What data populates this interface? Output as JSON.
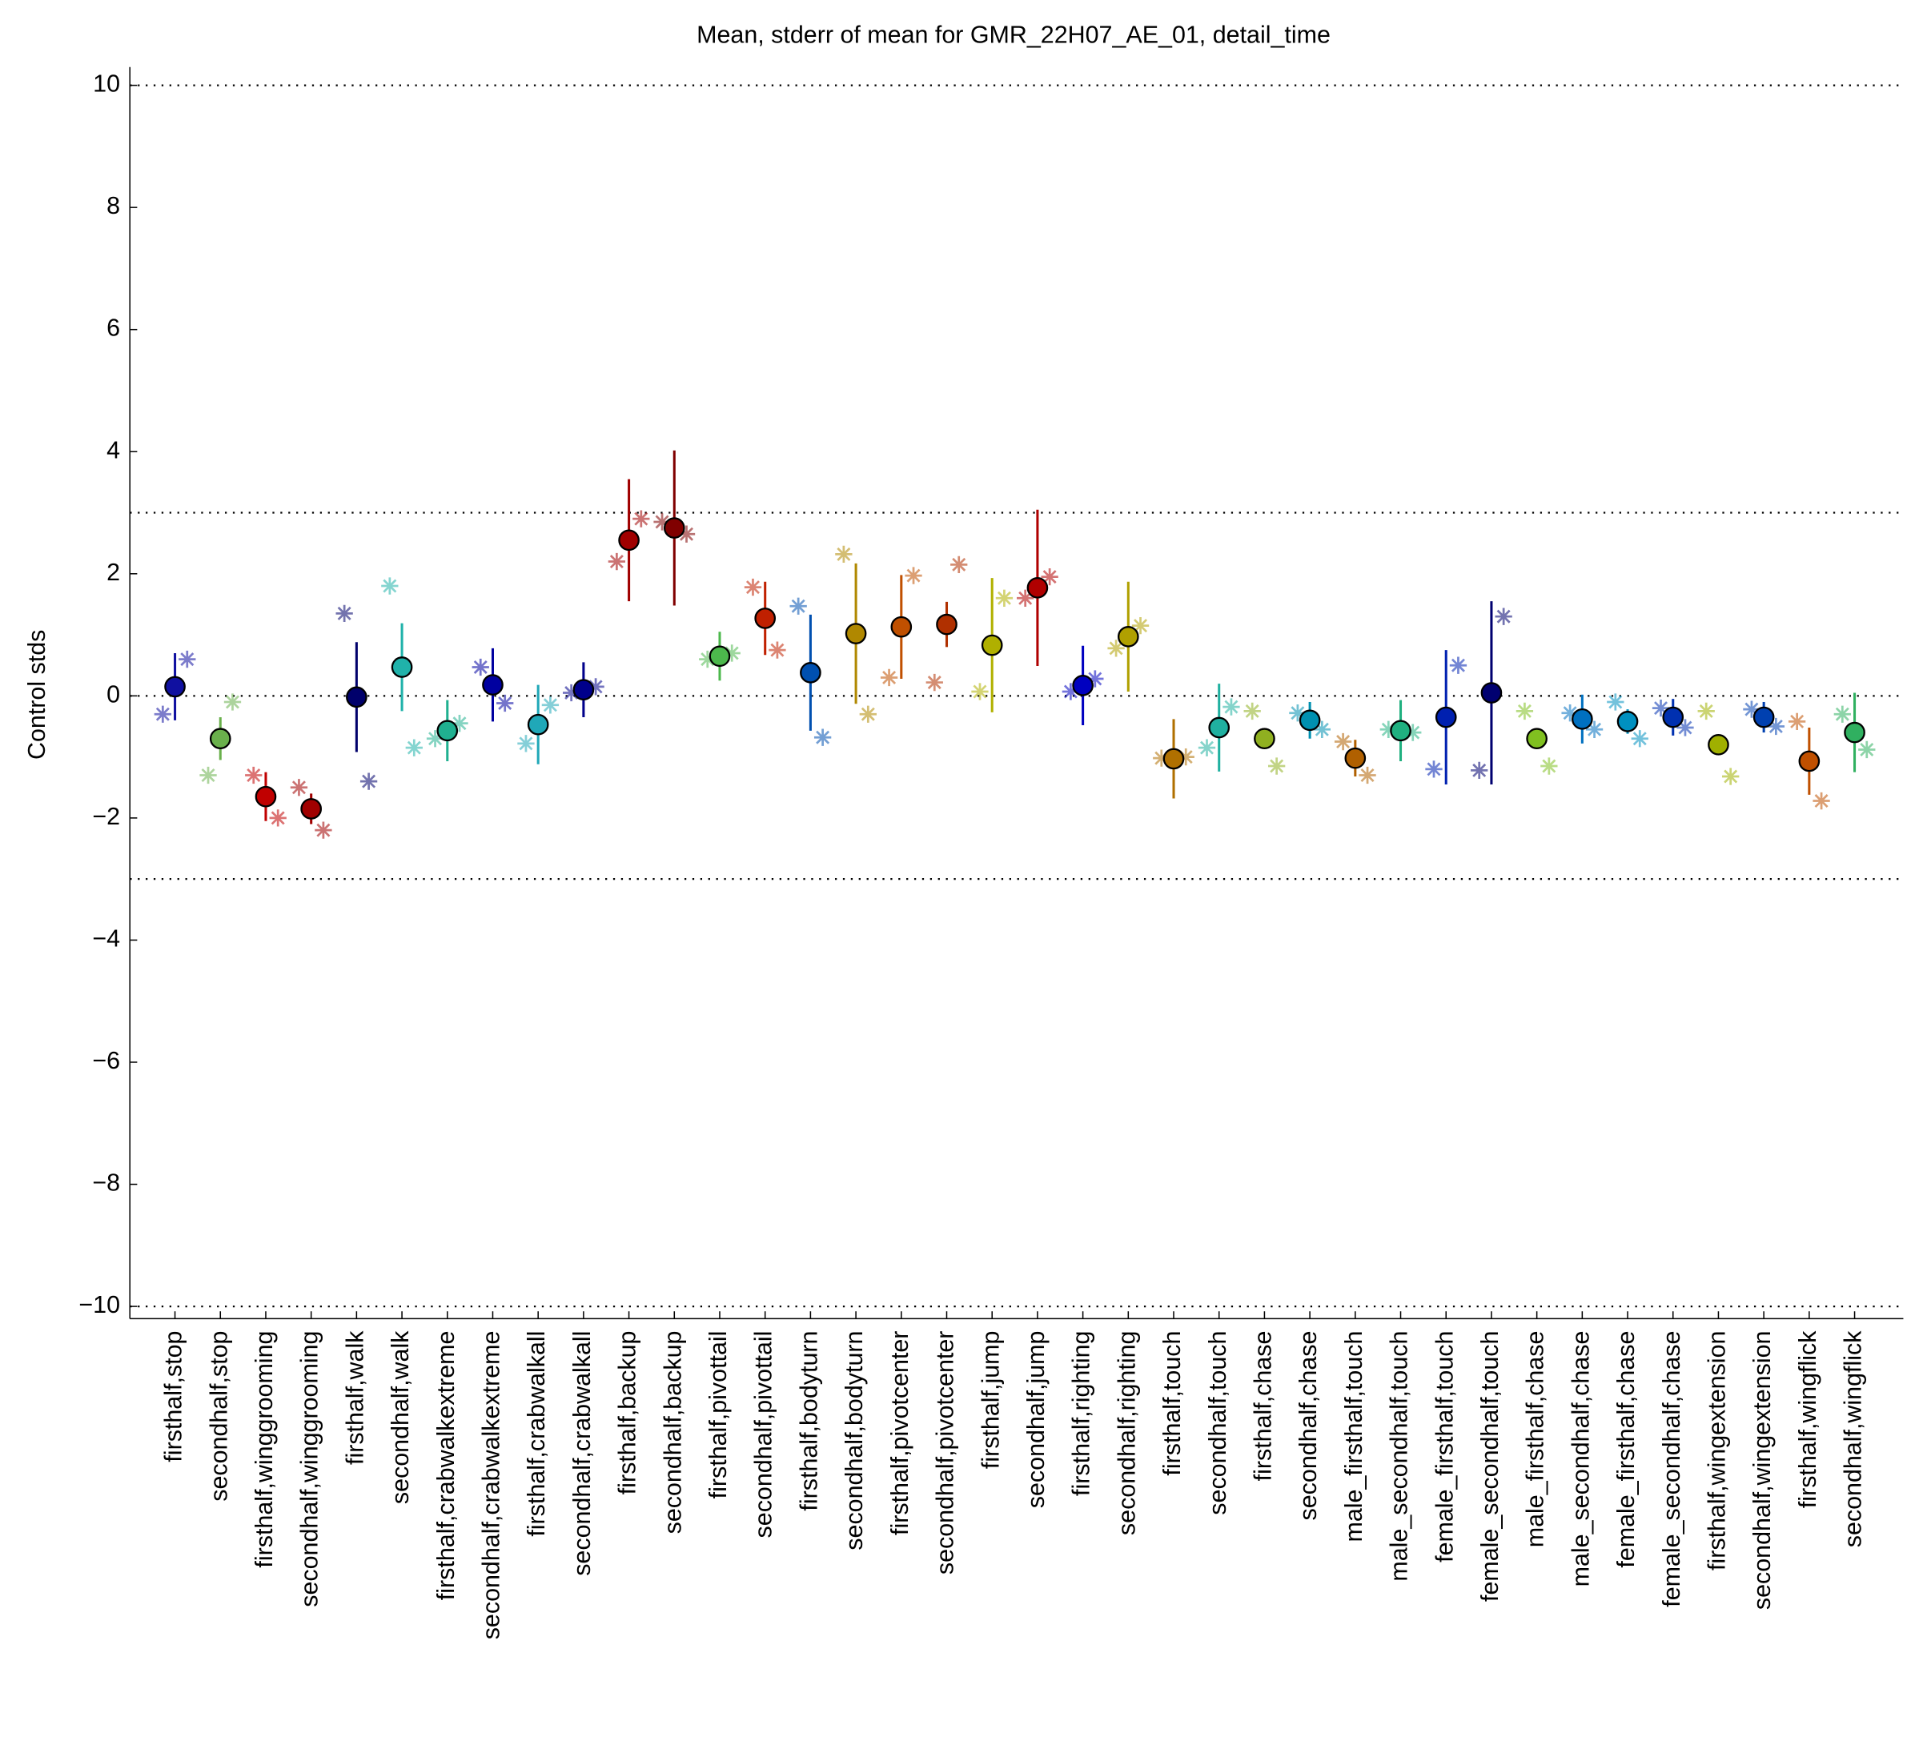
{
  "chart_data": {
    "type": "errorbar",
    "title": "Mean, stderr of mean for GMR_22H07_AE_01, detail_time",
    "ylabel": "Control stds",
    "ylim": [
      -10.2,
      10.2
    ],
    "yticks": [
      {
        "value": -10,
        "label": "−10"
      },
      {
        "value": -8,
        "label": "−8"
      },
      {
        "value": -6,
        "label": "−6"
      },
      {
        "value": -4,
        "label": "−4"
      },
      {
        "value": -2,
        "label": "−2"
      },
      0,
      2,
      4,
      6,
      8,
      10
    ],
    "hlines": [
      10,
      3,
      0,
      -3,
      -10
    ],
    "categories": [
      "firsthalf,stop",
      "secondhalf,stop",
      "firsthalf,winggrooming",
      "secondhalf,winggrooming",
      "firsthalf,walk",
      "secondhalf,walk",
      "firsthalf,crabwalkextreme",
      "secondhalf,crabwalkextreme",
      "firsthalf,crabwalkall",
      "secondhalf,crabwalkall",
      "firsthalf,backup",
      "secondhalf,backup",
      "firsthalf,pivottail",
      "secondhalf,pivottail",
      "firsthalf,bodyturn",
      "secondhalf,bodyturn",
      "firsthalf,pivotcenter",
      "secondhalf,pivotcenter",
      "firsthalf,jump",
      "secondhalf,jump",
      "firsthalf,righting",
      "secondhalf,righting",
      "firsthalf,touch",
      "secondhalf,touch",
      "firsthalf,chase",
      "secondhalf,chase",
      "male_firsthalf,touch",
      "male_secondhalf,touch",
      "female_firsthalf,touch",
      "female_secondhalf,touch",
      "male_firsthalf,chase",
      "male_secondhalf,chase",
      "female_firsthalf,chase",
      "female_secondhalf,chase",
      "firsthalf,wingextension",
      "secondhalf,wingextension",
      "firsthalf,wingflick",
      "secondhalf,wingflick"
    ],
    "values": [
      0.15,
      -0.7,
      -1.65,
      -1.85,
      -0.02,
      0.47,
      -0.57,
      0.18,
      -0.47,
      0.1,
      2.55,
      2.75,
      0.65,
      1.27,
      0.38,
      1.02,
      1.13,
      1.17,
      0.83,
      1.77,
      0.17,
      0.97,
      -1.03,
      -0.52,
      -0.7,
      -0.4,
      -1.02,
      -0.57,
      -0.35,
      0.05,
      -0.7,
      -0.38,
      -0.42,
      -0.35,
      -0.8,
      -0.35,
      -1.07,
      -0.6
    ],
    "errors": [
      0.55,
      0.35,
      0.4,
      0.25,
      0.9,
      0.72,
      0.5,
      0.6,
      0.65,
      0.45,
      1.0,
      1.27,
      0.4,
      0.6,
      0.95,
      1.15,
      0.85,
      0.37,
      1.1,
      1.28,
      0.65,
      0.9,
      0.65,
      0.72,
      0,
      0.3,
      0.3,
      0.5,
      1.1,
      1.5,
      0,
      0.4,
      0.2,
      0.3,
      0,
      0.25,
      0.55,
      0.65
    ],
    "points": [
      [
        -0.3,
        0.6
      ],
      [
        -1.3,
        -0.1
      ],
      [
        -1.3,
        -2.0
      ],
      [
        -1.5,
        -2.2
      ],
      [
        1.35,
        -1.4
      ],
      [
        1.8,
        -0.85
      ],
      [
        -0.7,
        -0.45
      ],
      [
        0.47,
        -0.12
      ],
      [
        -0.78,
        -0.15
      ],
      [
        0.05,
        0.15
      ],
      [
        2.2,
        2.9
      ],
      [
        2.85,
        2.65
      ],
      [
        0.6,
        0.7
      ],
      [
        1.78,
        0.75
      ],
      [
        1.47,
        -0.68
      ],
      [
        2.32,
        -0.3
      ],
      [
        0.3,
        1.97
      ],
      [
        0.22,
        2.15
      ],
      [
        0.07,
        1.6
      ],
      [
        1.6,
        1.95
      ],
      [
        0.07,
        0.28
      ],
      [
        0.78,
        1.15
      ],
      [
        -1.02,
        -1.0
      ],
      [
        -0.85,
        -0.18
      ],
      [
        -0.25,
        -1.15
      ],
      [
        -0.28,
        -0.55
      ],
      [
        -0.75,
        -1.3
      ],
      [
        -0.55,
        -0.6
      ],
      [
        -1.2,
        0.5
      ],
      [
        -1.22,
        1.3
      ],
      [
        -0.25,
        -1.15
      ],
      [
        -0.28,
        -0.55
      ],
      [
        -0.1,
        -0.7
      ],
      [
        -0.2,
        -0.52
      ],
      [
        -0.25,
        -1.32
      ],
      [
        -0.22,
        -0.5
      ],
      [
        -0.42,
        -1.72
      ],
      [
        -0.3,
        -0.88
      ]
    ],
    "colors": [
      "#1010a0",
      "#6ab04c",
      "#c00000",
      "#a00000",
      "#00006b",
      "#20b2aa",
      "#20b090",
      "#0000a0",
      "#20a8b8",
      "#00008b",
      "#a00000",
      "#800000",
      "#4cb84c",
      "#c02000",
      "#0050b0",
      "#b08800",
      "#c05000",
      "#b03000",
      "#b0b000",
      "#b00000",
      "#0000c0",
      "#b0a000",
      "#b07000",
      "#20b0a0",
      "#90b020",
      "#0090b0",
      "#b06000",
      "#20b080",
      "#0020b0",
      "#000070",
      "#80c020",
      "#0070c0",
      "#0090c0",
      "#0030b0",
      "#a0b000",
      "#0040b0",
      "#c05000",
      "#30b060"
    ]
  }
}
